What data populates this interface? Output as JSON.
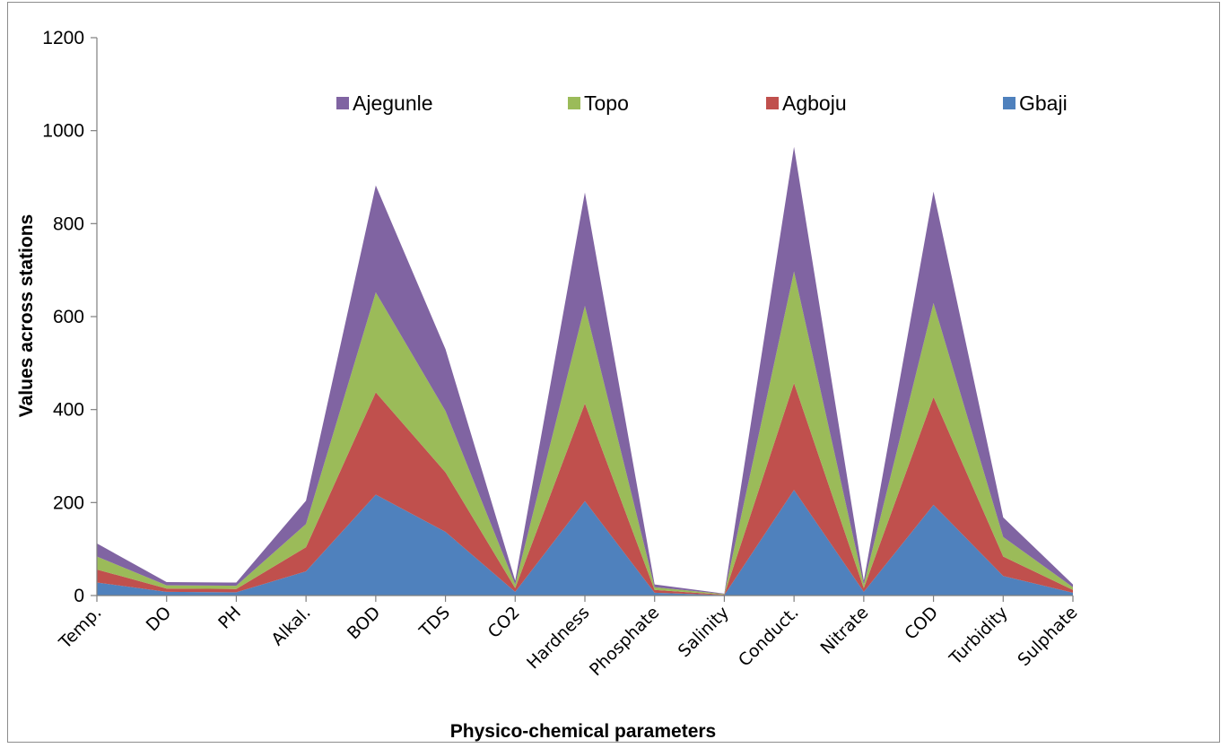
{
  "chart_data": {
    "type": "area",
    "stacked": true,
    "title": "",
    "xlabel": "Physico-chemical parameters",
    "ylabel": "Values across stations",
    "ylim": [
      0,
      1200
    ],
    "yticks": [
      "0",
      "200",
      "400",
      "600",
      "800",
      "1000",
      "1200"
    ],
    "grid": false,
    "legend_position": "top",
    "categories": [
      "Temp.",
      "DO",
      "PH",
      "Alkal.",
      "BOD",
      "TDS",
      "CO2",
      "Hardness",
      "Phosphate",
      "Salinity",
      "Conduct.",
      "Nitrate",
      "COD",
      "Turbidity",
      "Sulphate"
    ],
    "series": [
      {
        "name": "Gbaji",
        "color": "#4f81bd",
        "values": [
          28,
          8,
          7,
          52,
          217,
          137,
          8,
          203,
          6,
          1,
          227,
          8,
          195,
          42,
          6
        ]
      },
      {
        "name": "Agboju",
        "color": "#c0504d",
        "values": [
          28,
          7,
          7,
          52,
          220,
          128,
          8,
          210,
          6,
          1,
          230,
          8,
          232,
          42,
          6
        ]
      },
      {
        "name": "Topo",
        "color": "#9bbb59",
        "values": [
          28,
          7,
          7,
          50,
          215,
          132,
          8,
          210,
          6,
          1,
          240,
          8,
          202,
          42,
          6
        ]
      },
      {
        "name": "Ajegunle",
        "color": "#8064a2",
        "values": [
          28,
          7,
          7,
          50,
          230,
          133,
          8,
          244,
          6,
          1,
          268,
          8,
          240,
          42,
          6
        ]
      }
    ],
    "legend_order": [
      "Ajegunle",
      "Topo",
      "Agboju",
      "Gbaji"
    ]
  }
}
